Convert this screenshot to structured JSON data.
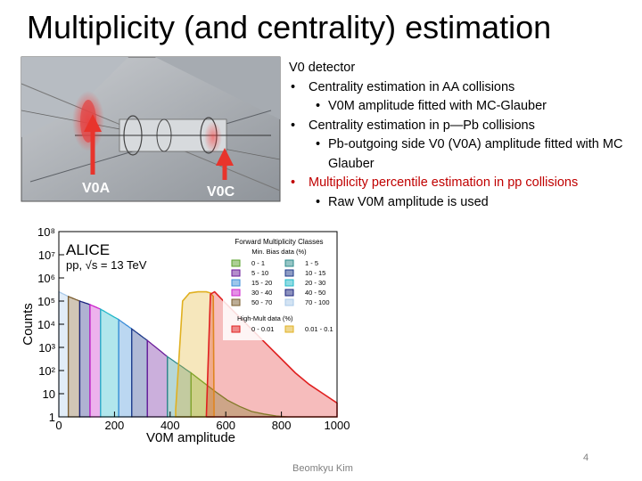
{
  "slide": {
    "title": "Multiplicity (and centrality) estimation",
    "author": "Beomkyu Kim",
    "page_number": "4"
  },
  "detector_image": {
    "label_v0a": "V0A",
    "label_v0c": "V0C"
  },
  "bullets": {
    "heading": "V0 detector",
    "items": [
      {
        "text": "Centrality estimation in AA collisions",
        "sub": "V0M amplitude fitted with MC-Glauber"
      },
      {
        "text": "Centrality estimation in p—Pb collisions",
        "sub": "Pb-outgoing side V0 (V0A) amplitude fitted with MC Glauber"
      },
      {
        "text": "Multiplicity percentile estimation in pp collisions",
        "sub": "Raw V0M amplitude is used",
        "highlight_color": "#c00000"
      }
    ]
  },
  "chart_data": {
    "type": "area",
    "experiment": "ALICE",
    "system": "pp, √s = 13 TeV",
    "xlabel": "V0M amplitude",
    "ylabel": "Counts",
    "xlim": [
      0,
      1000
    ],
    "ylim_log10": [
      0,
      8
    ],
    "y_scale": "log",
    "x_ticks": [
      "0",
      "200",
      "400",
      "600",
      "800",
      "1000"
    ],
    "y_ticks": [
      "1",
      "10",
      "10²",
      "10³",
      "10⁴",
      "10⁵",
      "10⁶",
      "10⁷",
      "10⁸"
    ],
    "legend_title": "Forward Multiplicity Classes",
    "legend_min_bias_title": "Min. Bias data (%)",
    "legend_high_mult_title": "High-Mult data (%)",
    "legend_placement": "top-right",
    "min_bias_classes": [
      {
        "label": "0 - 1",
        "color": "#5aa02c"
      },
      {
        "label": "1 - 5",
        "color": "#2e8b8b"
      },
      {
        "label": "5 - 10",
        "color": "#6a1b9a"
      },
      {
        "label": "10 - 15",
        "color": "#1e3a8a"
      },
      {
        "label": "15 - 20",
        "color": "#3c8dd8"
      },
      {
        "label": "20 - 30",
        "color": "#1fb8c8"
      },
      {
        "label": "30 - 40",
        "color": "#cc22cc"
      },
      {
        "label": "40 - 50",
        "color": "#1a237e"
      },
      {
        "label": "50 - 70",
        "color": "#7a5c2e"
      },
      {
        "label": "70 - 100",
        "color": "#a8c8e8"
      }
    ],
    "high_mult_classes": [
      {
        "label": "0 - 0.01",
        "color": "#e02020"
      },
      {
        "label": "0.01 - 0.1",
        "color": "#e0b020"
      }
    ],
    "mb_classes": [
      {
        "x_min": 0,
        "x_max": 34,
        "color": "#a8c8e8"
      },
      {
        "x_min": 34,
        "x_max": 75,
        "color": "#7a5c2e"
      },
      {
        "x_min": 75,
        "x_max": 112,
        "color": "#1a237e"
      },
      {
        "x_min": 112,
        "x_max": 150,
        "color": "#cc22cc"
      },
      {
        "x_min": 150,
        "x_max": 215,
        "color": "#1fb8c8"
      },
      {
        "x_min": 215,
        "x_max": 262,
        "color": "#3c8dd8"
      },
      {
        "x_min": 262,
        "x_max": 318,
        "color": "#1e3a8a"
      },
      {
        "x_min": 318,
        "x_max": 390,
        "color": "#6a1b9a"
      },
      {
        "x_min": 390,
        "x_max": 475,
        "color": "#2e8b8b"
      },
      {
        "x_min": 475,
        "x_max": 1000,
        "color": "#5aa02c"
      }
    ],
    "mb_shape_log10": [
      [
        0,
        5.4
      ],
      [
        34,
        5.2
      ],
      [
        75,
        5.0
      ],
      [
        112,
        4.85
      ],
      [
        150,
        4.65
      ],
      [
        215,
        4.2
      ],
      [
        262,
        3.8
      ],
      [
        318,
        3.3
      ],
      [
        390,
        2.6
      ],
      [
        475,
        1.9
      ],
      [
        550,
        1.2
      ],
      [
        620,
        0.6
      ],
      [
        700,
        0.2
      ],
      [
        800,
        0
      ]
    ],
    "hm_yellow_shape_log10": [
      [
        420,
        0.3
      ],
      [
        445,
        5.0
      ],
      [
        470,
        5.35
      ],
      [
        500,
        5.4
      ],
      [
        530,
        5.4
      ],
      [
        545,
        5.35
      ],
      [
        555,
        5.2
      ],
      [
        558,
        0
      ]
    ],
    "hm_red_shape_log10": [
      [
        530,
        0
      ],
      [
        545,
        5.3
      ],
      [
        560,
        5.4
      ],
      [
        600,
        4.9
      ],
      [
        650,
        4.3
      ],
      [
        700,
        3.7
      ],
      [
        750,
        3.1
      ],
      [
        800,
        2.5
      ],
      [
        850,
        1.9
      ],
      [
        900,
        1.4
      ],
      [
        950,
        1.0
      ],
      [
        1000,
        0.6
      ]
    ]
  }
}
